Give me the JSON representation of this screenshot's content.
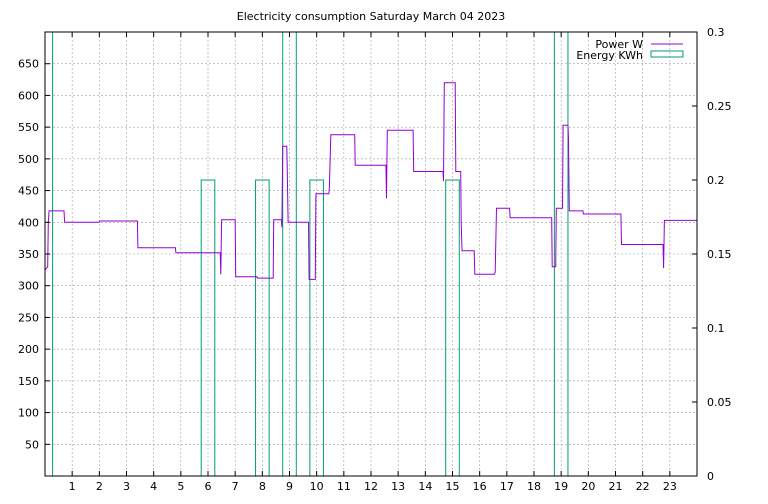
{
  "colors": {
    "power": "#9400d3",
    "energy": "#009e73",
    "grid": "#a0a0a0",
    "axis": "#000000"
  },
  "chart_data": {
    "type": "line",
    "title": "Electricity consumption Saturday March 04 2023",
    "grid": true,
    "legend_placement": "top-right",
    "x_range": [
      0,
      24
    ],
    "x_ticks": [
      "1",
      "2",
      "3",
      "4",
      "5",
      "6",
      "7",
      "8",
      "9",
      "10",
      "11",
      "12",
      "13",
      "14",
      "15",
      "16",
      "17",
      "18",
      "19",
      "20",
      "21",
      "22",
      "23"
    ],
    "y_left": {
      "range": [
        0,
        700
      ],
      "ticks": [
        "50",
        "100",
        "150",
        "200",
        "250",
        "300",
        "350",
        "400",
        "450",
        "500",
        "550",
        "600",
        "650"
      ]
    },
    "y_right": {
      "range": [
        0,
        0.3
      ],
      "ticks": [
        "0",
        "0.05",
        "0.1",
        "0.15",
        "0.2",
        "0.25",
        "0.3"
      ]
    },
    "series": [
      {
        "name": "Power W",
        "axis": "left",
        "style": "line",
        "points": [
          [
            0.0,
            325
          ],
          [
            0.1,
            330
          ],
          [
            0.12,
            400
          ],
          [
            0.15,
            418
          ],
          [
            0.7,
            418
          ],
          [
            0.72,
            400
          ],
          [
            2.0,
            400
          ],
          [
            2.02,
            402
          ],
          [
            3.4,
            402
          ],
          [
            3.42,
            360
          ],
          [
            4.8,
            360
          ],
          [
            4.82,
            352
          ],
          [
            6.45,
            352
          ],
          [
            6.47,
            318
          ],
          [
            6.5,
            404
          ],
          [
            7.0,
            404
          ],
          [
            7.02,
            314
          ],
          [
            7.8,
            314
          ],
          [
            7.82,
            312
          ],
          [
            8.4,
            312
          ],
          [
            8.42,
            404
          ],
          [
            8.7,
            404
          ],
          [
            8.72,
            392
          ],
          [
            8.75,
            520
          ],
          [
            8.9,
            520
          ],
          [
            8.92,
            478
          ],
          [
            8.95,
            400
          ],
          [
            9.7,
            400
          ],
          [
            9.72,
            310
          ],
          [
            9.95,
            310
          ],
          [
            9.97,
            445
          ],
          [
            10.45,
            445
          ],
          [
            10.47,
            455
          ],
          [
            10.52,
            538
          ],
          [
            11.4,
            538
          ],
          [
            11.42,
            490
          ],
          [
            12.55,
            490
          ],
          [
            12.57,
            438
          ],
          [
            12.6,
            545
          ],
          [
            13.55,
            545
          ],
          [
            13.57,
            480
          ],
          [
            14.65,
            480
          ],
          [
            14.67,
            465
          ],
          [
            14.7,
            620
          ],
          [
            15.1,
            620
          ],
          [
            15.12,
            480
          ],
          [
            15.3,
            480
          ],
          [
            15.32,
            400
          ],
          [
            15.35,
            355
          ],
          [
            15.8,
            355
          ],
          [
            15.82,
            318
          ],
          [
            16.55,
            318
          ],
          [
            16.57,
            322
          ],
          [
            16.62,
            422
          ],
          [
            17.1,
            422
          ],
          [
            17.12,
            407
          ],
          [
            18.65,
            407
          ],
          [
            18.67,
            330
          ],
          [
            18.8,
            330
          ],
          [
            18.82,
            422
          ],
          [
            19.05,
            422
          ],
          [
            19.07,
            553
          ],
          [
            19.25,
            553
          ],
          [
            19.27,
            530
          ],
          [
            19.3,
            418
          ],
          [
            19.8,
            418
          ],
          [
            19.82,
            413
          ],
          [
            21.2,
            413
          ],
          [
            21.22,
            365
          ],
          [
            22.75,
            365
          ],
          [
            22.77,
            328
          ],
          [
            22.8,
            403
          ],
          [
            24.0,
            403
          ]
        ]
      },
      {
        "name": "Energy KWh",
        "axis": "right",
        "style": "bars",
        "bars": [
          {
            "x1": 0.0,
            "x2": 0.28,
            "value": 0.3
          },
          {
            "x1": 5.75,
            "x2": 6.25,
            "value": 0.2
          },
          {
            "x1": 7.75,
            "x2": 8.25,
            "value": 0.2
          },
          {
            "x1": 8.75,
            "x2": 9.25,
            "value": 0.3
          },
          {
            "x1": 9.75,
            "x2": 10.25,
            "value": 0.2
          },
          {
            "x1": 14.75,
            "x2": 15.25,
            "value": 0.2
          },
          {
            "x1": 18.75,
            "x2": 19.25,
            "value": 0.3
          }
        ]
      }
    ]
  }
}
